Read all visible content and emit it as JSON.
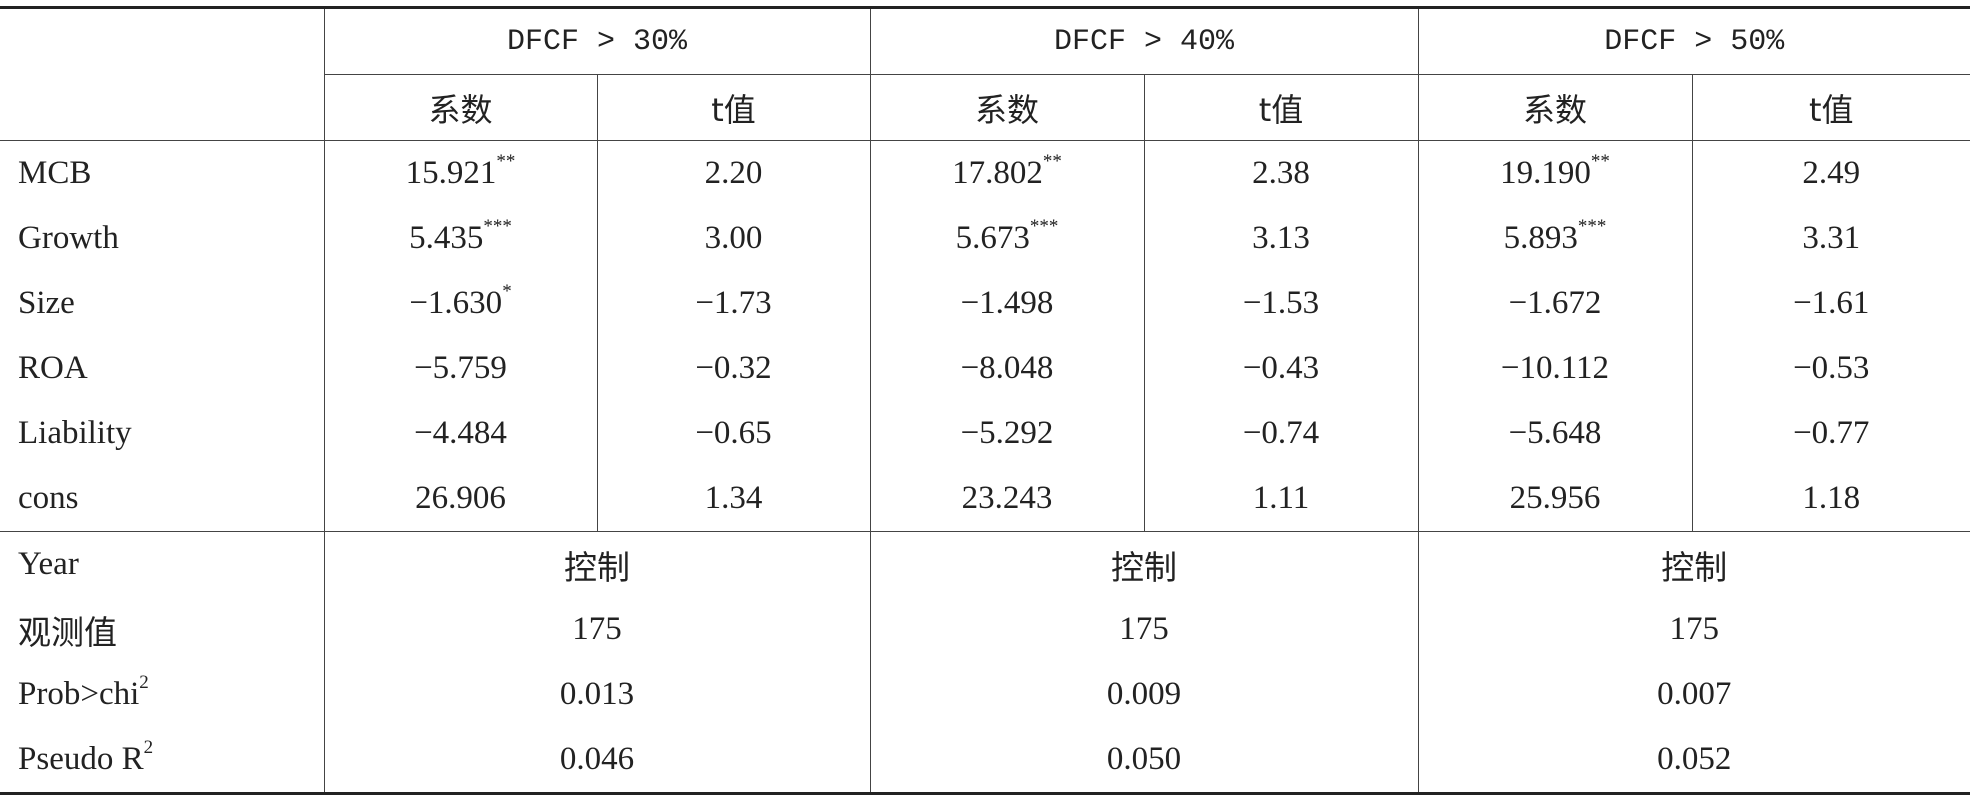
{
  "table": {
    "groups": [
      "DFCF > 30%",
      "DFCF > 40%",
      "DFCF > 50%"
    ],
    "sub": [
      "系数",
      "t值",
      "系数",
      "t值",
      "系数",
      "t值"
    ],
    "rows": [
      {
        "label": "MCB",
        "cells": [
          {
            "text": "15.921",
            "sup": "**"
          },
          {
            "text": "2.20"
          },
          {
            "text": "17.802",
            "sup": "**"
          },
          {
            "text": "2.38"
          },
          {
            "text": "19.190",
            "sup": "**"
          },
          {
            "text": "2.49"
          }
        ]
      },
      {
        "label": "Growth",
        "cells": [
          {
            "text": "5.435",
            "sup": "***"
          },
          {
            "text": "3.00"
          },
          {
            "text": "5.673",
            "sup": "***"
          },
          {
            "text": "3.13"
          },
          {
            "text": "5.893",
            "sup": "***"
          },
          {
            "text": "3.31"
          }
        ]
      },
      {
        "label": "Size",
        "cells": [
          {
            "text": "−1.630",
            "sup": "*"
          },
          {
            "text": "−1.73"
          },
          {
            "text": "−1.498"
          },
          {
            "text": "−1.53"
          },
          {
            "text": "−1.672"
          },
          {
            "text": "−1.61"
          }
        ]
      },
      {
        "label": "ROA",
        "cells": [
          {
            "text": "−5.759"
          },
          {
            "text": "−0.32"
          },
          {
            "text": "−8.048"
          },
          {
            "text": "−0.43"
          },
          {
            "text": "−10.112"
          },
          {
            "text": "−0.53"
          }
        ]
      },
      {
        "label": "Liability",
        "cells": [
          {
            "text": "−4.484"
          },
          {
            "text": "−0.65"
          },
          {
            "text": "−5.292"
          },
          {
            "text": "−0.74"
          },
          {
            "text": "−5.648"
          },
          {
            "text": "−0.77"
          }
        ]
      },
      {
        "label": "cons",
        "cells": [
          {
            "text": "26.906"
          },
          {
            "text": "1.34"
          },
          {
            "text": "23.243"
          },
          {
            "text": "1.11"
          },
          {
            "text": "25.956"
          },
          {
            "text": "1.18"
          }
        ]
      }
    ],
    "summary": [
      {
        "label": "Year",
        "cells": [
          "控制",
          "控制",
          "控制"
        ]
      },
      {
        "label": "观测值",
        "cells": [
          "175",
          "175",
          "175"
        ]
      },
      {
        "label": "Prob>chi",
        "label_sup": "2",
        "cells": [
          "0.013",
          "0.009",
          "0.007"
        ]
      },
      {
        "label": "Pseudo R",
        "label_sup": "2",
        "cells": [
          "0.046",
          "0.050",
          "0.052"
        ]
      }
    ]
  }
}
